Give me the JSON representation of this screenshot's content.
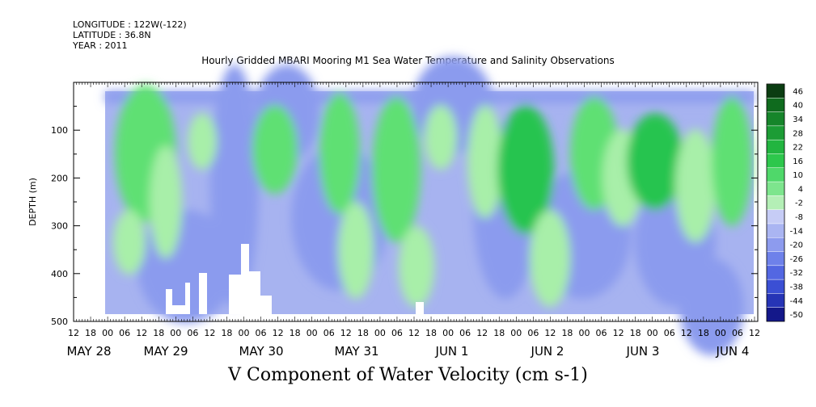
{
  "header": {
    "longitude": "LONGITUDE : 122W(-122)",
    "latitude": "LATITUDE : 36.8N",
    "year": "YEAR : 2011",
    "title": "Hourly Gridded MBARI Mooring M1 Sea Water Temperature and Salinity Observations"
  },
  "chart_data": {
    "type": "heatmap",
    "title": "Hourly Gridded MBARI Mooring M1 Sea Water Temperature and Salinity Observations",
    "xlabel": "",
    "ylabel": "DEPTH (m)",
    "ylim": [
      500,
      0
    ],
    "yticks": [
      100,
      200,
      300,
      400,
      500
    ],
    "hour_ticks": [
      "12",
      "18",
      "00",
      "06",
      "12",
      "18",
      "00",
      "06",
      "12",
      "18",
      "00",
      "06",
      "12",
      "18",
      "00",
      "06",
      "12",
      "18",
      "00",
      "06",
      "12",
      "18",
      "00",
      "06",
      "12",
      "18",
      "00",
      "06",
      "12",
      "18",
      "00",
      "06",
      "12",
      "18",
      "00",
      "06",
      "12",
      "18",
      "00",
      "06",
      "12"
    ],
    "day_labels": [
      "MAY 28",
      "MAY 29",
      "MAY 30",
      "MAY 31",
      "JUN  1",
      "JUN  2",
      "JUN  3",
      "JUN  4"
    ],
    "colorbar_levels": [
      "46",
      "40",
      "34",
      "28",
      "22",
      "16",
      "10",
      "4",
      "-2",
      "-8",
      "-14",
      "-20",
      "-26",
      "-32",
      "-38",
      "-44",
      "-50"
    ],
    "colorbar_range": [
      -50,
      50
    ],
    "variable_title": "V Component of Water Velocity (cm s-1)",
    "colors": {
      "negative_light": "#a7b3f0",
      "negative_mid": "#8b9bee",
      "negative_strong": "#4d63e6",
      "negative_deep": "#1b1c98",
      "positive_light": "#a8efa9",
      "positive_mid": "#5fe073",
      "positive_strong": "#27c44f",
      "positive_deep": "#0b5b18",
      "missing": "#ffffff"
    }
  }
}
